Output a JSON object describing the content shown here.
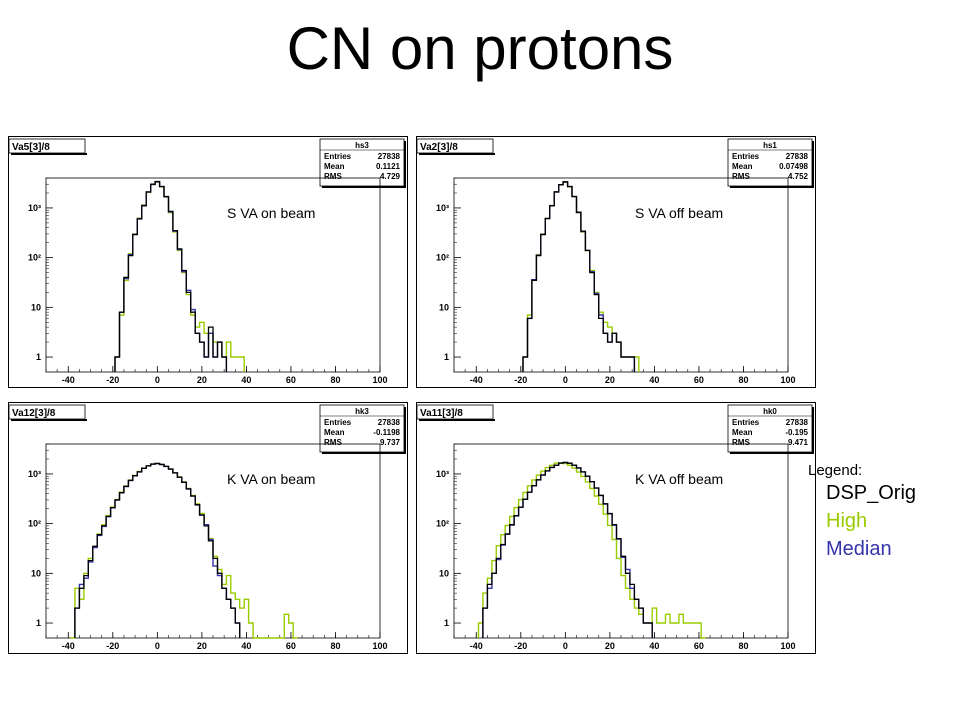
{
  "title": "CN on protons",
  "legend": {
    "title": "Legend:",
    "entries": [
      {
        "label": "DSP_Orig",
        "color": "#000000"
      },
      {
        "label": "High",
        "color": "#99cc00"
      },
      {
        "label": "Median",
        "color": "#3333aa"
      }
    ]
  },
  "chart_data": [
    {
      "type": "histogram",
      "histogram_title": "Va5[3]/8",
      "stats_name": "hs3",
      "stats": [
        {
          "label": "Entries",
          "value": "27838"
        },
        {
          "label": "Mean",
          "value": "0.1121"
        },
        {
          "label": "RMS",
          "value": "4.729"
        }
      ],
      "annotation": "S VA on beam",
      "xlim": [
        -50,
        100
      ],
      "ylim": [
        0.5,
        4000
      ],
      "y_scale": "log",
      "x_ticks": [
        "-40",
        "-20",
        "0",
        "20",
        "40",
        "60",
        "80",
        "100"
      ],
      "y_ticks": [
        "1",
        "10",
        "10²",
        "10³"
      ],
      "series": [
        {
          "name": "DSP_Orig",
          "color": "#000000",
          "x": [
            -18,
            -16,
            -14,
            -12,
            -10,
            -8,
            -6,
            -4,
            -2,
            0,
            2,
            4,
            6,
            8,
            10,
            12,
            14,
            16,
            18,
            20,
            22,
            24,
            26,
            28,
            30
          ],
          "values": [
            1,
            8,
            40,
            110,
            290,
            600,
            1100,
            2100,
            3000,
            3400,
            2700,
            1700,
            850,
            350,
            150,
            55,
            20,
            8,
            3,
            2,
            1,
            4,
            1,
            2,
            1
          ]
        },
        {
          "name": "High",
          "color": "#99cc00",
          "x": [
            -18,
            -16,
            -14,
            -12,
            -10,
            -8,
            -6,
            -4,
            -2,
            0,
            2,
            4,
            6,
            8,
            10,
            12,
            14,
            16,
            18,
            20,
            22,
            24,
            26,
            28,
            30,
            32,
            34,
            36,
            38
          ],
          "values": [
            1,
            7,
            35,
            120,
            300,
            620,
            1150,
            2050,
            2950,
            3300,
            2650,
            1650,
            800,
            330,
            140,
            50,
            18,
            7,
            4,
            5,
            3,
            3,
            2,
            2,
            1,
            2,
            1,
            1,
            1
          ]
        },
        {
          "name": "Median",
          "color": "#3333aa",
          "x": [
            -18,
            -16,
            -14,
            -12,
            -10,
            -8,
            -6,
            -4,
            -2,
            0,
            2,
            4,
            6,
            8,
            10,
            12,
            14,
            16,
            18,
            20,
            22,
            24,
            26,
            28,
            30
          ],
          "values": [
            1,
            8,
            38,
            115,
            295,
            610,
            1120,
            2080,
            2980,
            3350,
            2680,
            1680,
            830,
            340,
            145,
            52,
            22,
            9,
            3,
            2,
            1,
            3,
            1,
            2,
            1
          ]
        }
      ]
    },
    {
      "type": "histogram",
      "histogram_title": "Va2[3]/8",
      "stats_name": "hs1",
      "stats": [
        {
          "label": "Entries",
          "value": "27838"
        },
        {
          "label": "Mean",
          "value": "0.07498"
        },
        {
          "label": "RMS",
          "value": "4.752"
        }
      ],
      "annotation": "S VA off beam",
      "xlim": [
        -50,
        100
      ],
      "ylim": [
        0.5,
        4000
      ],
      "y_scale": "log",
      "x_ticks": [
        "-40",
        "-20",
        "0",
        "20",
        "40",
        "60",
        "80",
        "100"
      ],
      "y_ticks": [
        "1",
        "10",
        "10²",
        "10³"
      ],
      "series": [
        {
          "name": "DSP_Orig",
          "color": "#000000",
          "x": [
            -18,
            -16,
            -14,
            -12,
            -10,
            -8,
            -6,
            -4,
            -2,
            0,
            2,
            4,
            6,
            8,
            10,
            12,
            14,
            16,
            18,
            20,
            22,
            24,
            26,
            28,
            30
          ],
          "values": [
            1,
            6,
            35,
            110,
            290,
            610,
            1100,
            2100,
            2950,
            3350,
            2700,
            1700,
            820,
            340,
            140,
            50,
            18,
            6,
            3,
            2,
            3,
            2,
            1,
            1,
            1
          ]
        },
        {
          "name": "High",
          "color": "#99cc00",
          "x": [
            -18,
            -16,
            -14,
            -12,
            -10,
            -8,
            -6,
            -4,
            -2,
            0,
            2,
            4,
            6,
            8,
            10,
            12,
            14,
            16,
            18,
            20,
            22,
            24,
            26,
            28,
            30,
            32
          ],
          "values": [
            1,
            7,
            36,
            115,
            300,
            620,
            1120,
            2080,
            2900,
            3300,
            2650,
            1680,
            800,
            330,
            138,
            55,
            20,
            8,
            5,
            4,
            3,
            2,
            1,
            1,
            1,
            1
          ]
        },
        {
          "name": "Median",
          "color": "#3333aa",
          "x": [
            -18,
            -16,
            -14,
            -12,
            -10,
            -8,
            -6,
            -4,
            -2,
            0,
            2,
            4,
            6,
            8,
            10,
            12,
            14,
            16,
            18,
            20,
            22,
            24,
            26,
            28,
            30
          ],
          "values": [
            1,
            6,
            36,
            112,
            295,
            615,
            1110,
            2090,
            2930,
            3330,
            2680,
            1690,
            810,
            335,
            140,
            52,
            19,
            7,
            3,
            2,
            3,
            2,
            1,
            1,
            1
          ]
        }
      ]
    },
    {
      "type": "histogram",
      "histogram_title": "Va12[3]/8",
      "stats_name": "hk3",
      "stats": [
        {
          "label": "Entries",
          "value": "27838"
        },
        {
          "label": "Mean",
          "value": "-0.1198"
        },
        {
          "label": "RMS",
          "value": "9.737"
        }
      ],
      "annotation": "K VA on beam",
      "xlim": [
        -50,
        100
      ],
      "ylim": [
        0.5,
        4000
      ],
      "y_scale": "log",
      "x_ticks": [
        "-40",
        "-20",
        "0",
        "20",
        "40",
        "60",
        "80",
        "100"
      ],
      "y_ticks": [
        "1",
        "10",
        "10²",
        "10³"
      ],
      "series": [
        {
          "name": "DSP_Orig",
          "color": "#000000",
          "x": [
            -36,
            -34,
            -32,
            -30,
            -28,
            -26,
            -24,
            -22,
            -20,
            -18,
            -16,
            -14,
            -12,
            -10,
            -8,
            -6,
            -4,
            -2,
            0,
            2,
            4,
            6,
            8,
            10,
            12,
            14,
            16,
            18,
            20,
            22,
            24,
            26,
            28,
            30,
            32,
            34,
            36
          ],
          "values": [
            2,
            5,
            9,
            18,
            35,
            60,
            90,
            140,
            210,
            300,
            420,
            560,
            740,
            920,
            1100,
            1300,
            1450,
            1580,
            1620,
            1550,
            1420,
            1250,
            1050,
            860,
            680,
            500,
            360,
            240,
            150,
            90,
            45,
            20,
            10,
            5,
            3,
            2,
            1
          ]
        },
        {
          "name": "High",
          "color": "#99cc00",
          "x": [
            -38,
            -36,
            -34,
            -32,
            -30,
            -28,
            -26,
            -24,
            -22,
            -20,
            -18,
            -16,
            -14,
            -12,
            -10,
            -8,
            -6,
            -4,
            -2,
            0,
            2,
            4,
            6,
            8,
            10,
            12,
            14,
            16,
            18,
            20,
            22,
            24,
            26,
            28,
            30,
            32,
            34,
            36,
            38,
            40,
            42,
            44,
            46,
            48,
            50,
            52,
            54,
            56,
            58,
            60,
            62
          ],
          "values": [
            0.5,
            5,
            3,
            10,
            20,
            34,
            62,
            95,
            145,
            215,
            305,
            430,
            570,
            750,
            930,
            1120,
            1310,
            1460,
            1590,
            1630,
            1560,
            1430,
            1260,
            1060,
            870,
            690,
            510,
            370,
            250,
            160,
            95,
            50,
            22,
            12,
            6,
            9,
            4,
            3,
            2,
            3,
            1,
            0.5,
            0.5,
            0.5,
            0.5,
            0.5,
            0.5,
            0.5,
            1.5,
            1,
            0.5
          ]
        },
        {
          "name": "Median",
          "color": "#3333aa",
          "x": [
            -36,
            -34,
            -32,
            -30,
            -28,
            -26,
            -24,
            -22,
            -20,
            -18,
            -16,
            -14,
            -12,
            -10,
            -8,
            -6,
            -4,
            -2,
            0,
            2,
            4,
            6,
            8,
            10,
            12,
            14,
            16,
            18,
            20,
            22,
            24,
            26,
            28,
            30,
            32,
            34,
            36
          ],
          "values": [
            2,
            6,
            8,
            17,
            33,
            58,
            88,
            138,
            208,
            298,
            418,
            558,
            738,
            918,
            1098,
            1298,
            1448,
            1578,
            1618,
            1548,
            1418,
            1248,
            1048,
            858,
            678,
            498,
            358,
            238,
            148,
            95,
            48,
            14,
            9,
            5,
            3,
            2,
            1
          ]
        }
      ]
    },
    {
      "type": "histogram",
      "histogram_title": "Va11[3]/8",
      "stats_name": "hk0",
      "stats": [
        {
          "label": "Entries",
          "value": "27838"
        },
        {
          "label": "Mean",
          "value": "-0.195"
        },
        {
          "label": "RMS",
          "value": "9.471"
        }
      ],
      "annotation": "K VA off beam",
      "xlim": [
        -50,
        100
      ],
      "ylim": [
        0.5,
        4000
      ],
      "y_scale": "log",
      "x_ticks": [
        "-40",
        "-20",
        "0",
        "20",
        "40",
        "60",
        "80",
        "100"
      ],
      "y_ticks": [
        "1",
        "10",
        "10²",
        "10³"
      ],
      "series": [
        {
          "name": "DSP_Orig",
          "color": "#000000",
          "x": [
            -36,
            -34,
            -32,
            -30,
            -28,
            -26,
            -24,
            -22,
            -20,
            -18,
            -16,
            -14,
            -12,
            -10,
            -8,
            -6,
            -4,
            -2,
            0,
            2,
            4,
            6,
            8,
            10,
            12,
            14,
            16,
            18,
            20,
            22,
            24,
            26,
            28,
            30,
            32,
            34,
            36,
            38
          ],
          "values": [
            2,
            6,
            10,
            20,
            38,
            62,
            95,
            145,
            215,
            310,
            430,
            580,
            760,
            950,
            1150,
            1350,
            1500,
            1650,
            1700,
            1640,
            1500,
            1320,
            1100,
            900,
            700,
            520,
            370,
            250,
            160,
            95,
            50,
            22,
            10,
            6,
            3,
            2,
            1,
            1
          ]
        },
        {
          "name": "High",
          "color": "#99cc00",
          "x": [
            -38,
            -36,
            -34,
            -32,
            -30,
            -28,
            -26,
            -24,
            -22,
            -20,
            -18,
            -16,
            -14,
            -12,
            -10,
            -8,
            -6,
            -4,
            -2,
            0,
            2,
            4,
            6,
            8,
            10,
            12,
            14,
            16,
            18,
            20,
            22,
            24,
            26,
            28,
            30,
            32,
            34,
            36,
            38,
            40,
            42,
            44,
            46,
            48,
            50,
            52,
            54,
            56,
            58,
            60,
            62
          ],
          "values": [
            1,
            4,
            8,
            18,
            36,
            60,
            92,
            140,
            210,
            305,
            425,
            575,
            755,
            945,
            1140,
            1340,
            1490,
            1640,
            1680,
            1620,
            1490,
            1310,
            1090,
            890,
            690,
            510,
            360,
            245,
            155,
            92,
            48,
            20,
            9,
            5,
            3,
            2,
            1.5,
            1,
            1,
            2,
            1,
            1,
            1.5,
            1,
            1,
            1.5,
            1,
            1,
            1,
            1,
            0.5
          ]
        },
        {
          "name": "Median",
          "color": "#3333aa",
          "x": [
            -36,
            -34,
            -32,
            -30,
            -28,
            -26,
            -24,
            -22,
            -20,
            -18,
            -16,
            -14,
            -12,
            -10,
            -8,
            -6,
            -4,
            -2,
            0,
            2,
            4,
            6,
            8,
            10,
            12,
            14,
            16,
            18,
            20,
            22,
            24,
            26,
            28,
            30,
            32,
            34,
            36,
            38
          ],
          "values": [
            2,
            5,
            10,
            19,
            37,
            61,
            94,
            143,
            213,
            308,
            428,
            578,
            758,
            948,
            1148,
            1348,
            1498,
            1648,
            1698,
            1638,
            1498,
            1318,
            1098,
            898,
            698,
            518,
            368,
            248,
            158,
            93,
            49,
            21,
            12,
            5,
            3,
            2,
            1,
            1
          ]
        }
      ]
    }
  ]
}
